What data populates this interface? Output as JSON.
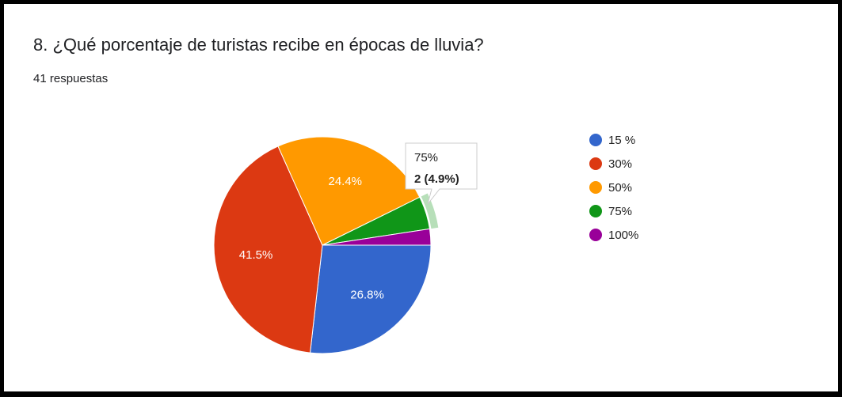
{
  "chart_data": {
    "type": "pie",
    "title": "8. ¿Qué porcentaje de turistas recibe en épocas de lluvia?",
    "subtitle": "41 respuestas",
    "categories": [
      "15 %",
      "30%",
      "50%",
      "75%",
      "100%"
    ],
    "values": [
      26.8,
      41.5,
      24.4,
      4.9,
      2.4
    ],
    "value_labels": [
      "26.8%",
      "41.5%",
      "24.4%",
      null,
      null
    ],
    "colors": [
      "#3366cc",
      "#dc3912",
      "#ff9900",
      "#109618",
      "#990099"
    ],
    "legend": "right",
    "tooltip_text": "2 (4.9%)"
  }
}
